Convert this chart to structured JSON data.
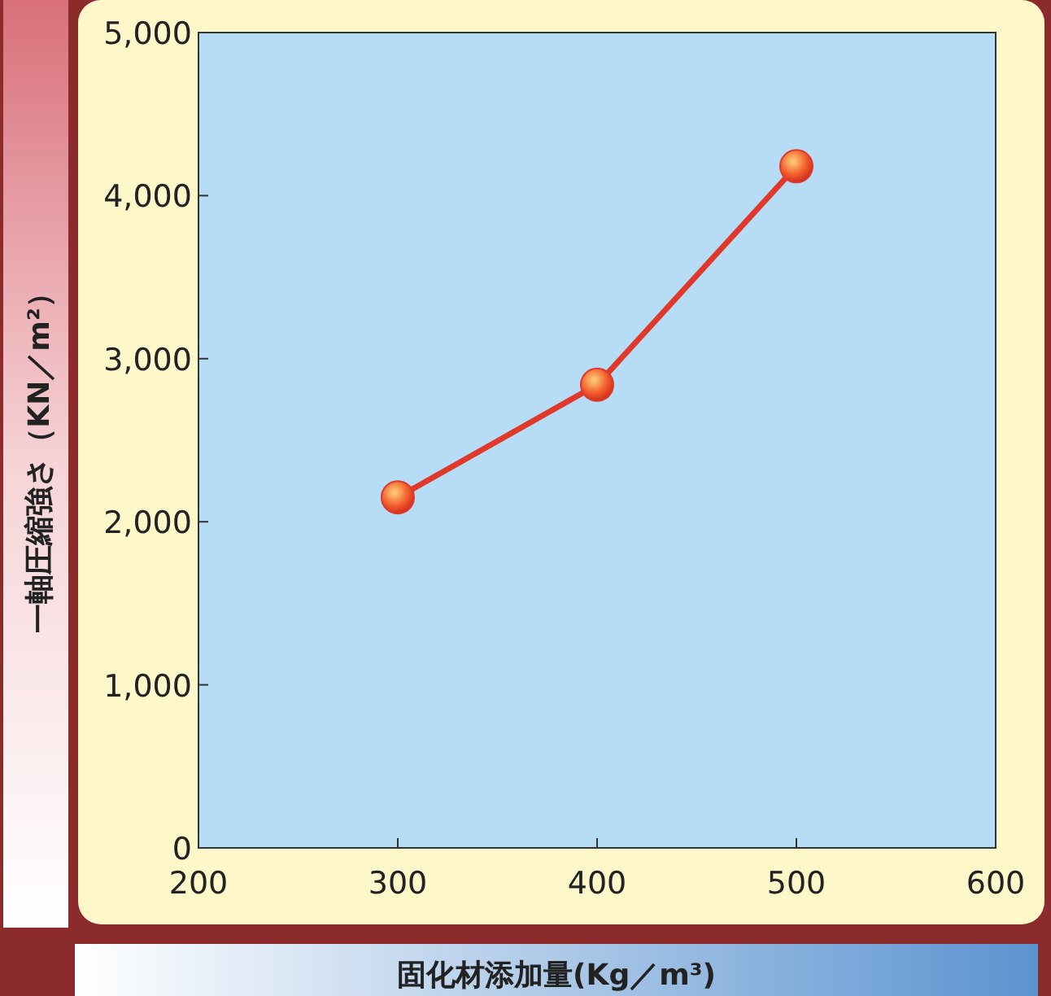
{
  "chart_data": {
    "type": "line",
    "xlabel": "固化材添加量(Kg／m³)",
    "ylabel": "一軸圧縮強さ（KN／m²）",
    "x": [
      300,
      400,
      500
    ],
    "series": [
      {
        "color": "#e0392b",
        "values": [
          2150,
          2840,
          4180
        ]
      }
    ],
    "xlim": [
      200,
      600
    ],
    "xticks": [
      200,
      300,
      400,
      500,
      600
    ],
    "ylim": [
      0,
      5000
    ],
    "yticks": [
      {
        "value": 0,
        "label": "0"
      },
      {
        "value": 1000,
        "label": "1,000"
      },
      {
        "value": 2000,
        "label": "2,000"
      },
      {
        "value": 3000,
        "label": "3,000"
      },
      {
        "value": 4000,
        "label": "4,000"
      },
      {
        "value": 5000,
        "label": "5,000"
      }
    ],
    "grid": false,
    "marker": "circle",
    "line_style": "solid"
  }
}
